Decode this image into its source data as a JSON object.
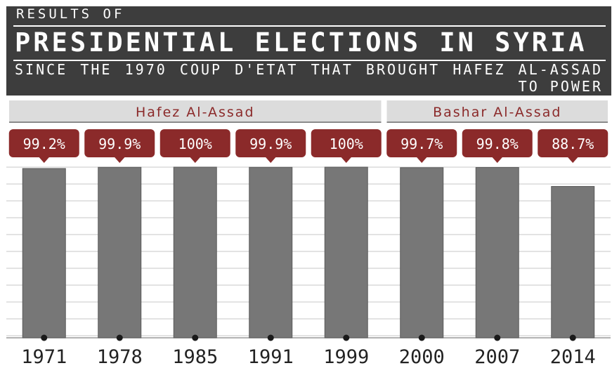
{
  "header": {
    "kicker": "RESULTS OF",
    "title": "PRESIDENTIAL ELECTIONS IN SYRIA",
    "subtitle": "SINCE THE 1970 COUP D'ETAT THAT BROUGHT HAFEZ AL-ASSAD TO POWER"
  },
  "colors": {
    "header_bg": "#3d3d3d",
    "bar": "#777777",
    "label_bubble": "#8b2a2a",
    "group_band": "#dcdcdc",
    "group_text": "#8b2a2a"
  },
  "chart_data": {
    "type": "bar",
    "title": "PRESIDENTIAL ELECTIONS IN SYRIA",
    "categories": [
      "1971",
      "1978",
      "1985",
      "1991",
      "1999",
      "2000",
      "2007",
      "2014"
    ],
    "values": [
      99.2,
      99.9,
      100,
      99.9,
      100,
      99.7,
      99.8,
      88.7
    ],
    "value_labels": [
      "99.2%",
      "99.9%",
      "100%",
      "99.9%",
      "100%",
      "99.7%",
      "99.8%",
      "88.7%"
    ],
    "groups": [
      {
        "name": "Hafez Al-Assad",
        "from": 0,
        "to": 4
      },
      {
        "name": "Bashar Al-Assad",
        "from": 5,
        "to": 7
      }
    ],
    "ylim": [
      0,
      100
    ],
    "grid": true,
    "xlabel": "",
    "ylabel": ""
  }
}
